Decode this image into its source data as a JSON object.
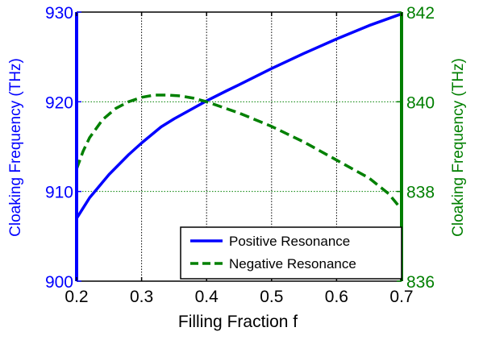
{
  "chart_data": {
    "type": "line",
    "title": "",
    "xlabel": "Filling Fraction f",
    "ylabel_left": "Cloaking Frequency (THz)",
    "ylabel_right": "Cloaking Frequency (THz)",
    "xlim": [
      0.2,
      0.7
    ],
    "ylim_left": [
      900,
      930
    ],
    "ylim_right": [
      836,
      842
    ],
    "x_ticks": [
      0.2,
      0.3,
      0.4,
      0.5,
      0.6,
      0.7
    ],
    "x_tick_labels": [
      "0.2",
      "0.3",
      "0.4",
      "0.5",
      "0.6",
      "0.7"
    ],
    "y_ticks_left": [
      900,
      910,
      920,
      930
    ],
    "y_tick_labels_left": [
      "900",
      "910",
      "920",
      "930"
    ],
    "y_ticks_right": [
      836,
      838,
      840,
      842
    ],
    "y_tick_labels_right": [
      "836",
      "838",
      "840",
      "842"
    ],
    "grid": true,
    "legend_position": "bottom-right",
    "colors": {
      "left_axis": "#0000ff",
      "right_axis": "#007f00",
      "grid_x": "#000000",
      "grid_y": "#008000"
    },
    "series": [
      {
        "name": "Positive Resonance",
        "axis": "left",
        "color": "#0000ff",
        "style": "solid",
        "x": [
          0.2,
          0.22,
          0.25,
          0.28,
          0.3,
          0.33,
          0.35,
          0.38,
          0.4,
          0.43,
          0.45,
          0.5,
          0.55,
          0.6,
          0.65,
          0.7
        ],
        "y": [
          907.0,
          909.3,
          911.9,
          914.1,
          915.4,
          917.2,
          918.1,
          919.3,
          920.1,
          921.2,
          921.9,
          923.7,
          925.4,
          927.0,
          928.5,
          929.8
        ]
      },
      {
        "name": "Negative Resonance",
        "axis": "right",
        "color": "#008000",
        "style": "dashed",
        "x": [
          0.2,
          0.21,
          0.22,
          0.24,
          0.26,
          0.28,
          0.3,
          0.32,
          0.34,
          0.36,
          0.38,
          0.4,
          0.45,
          0.5,
          0.55,
          0.6,
          0.65,
          0.68,
          0.7
        ],
        "y": [
          838.5,
          838.9,
          839.2,
          839.6,
          839.85,
          840.0,
          840.1,
          840.15,
          840.15,
          840.13,
          840.08,
          840.0,
          839.75,
          839.45,
          839.1,
          838.7,
          838.3,
          837.95,
          837.6
        ]
      }
    ]
  }
}
